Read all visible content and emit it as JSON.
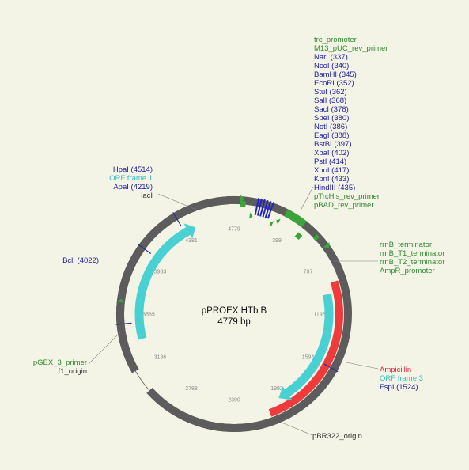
{
  "map": {
    "name": "pPROEX HTb B",
    "length": "4779 bp"
  },
  "ticks": [
    "399",
    "797",
    "1196",
    "1594",
    "1992",
    "2390",
    "2788",
    "3186",
    "3585",
    "3983",
    "4381",
    "4779"
  ],
  "label_groups": [
    {
      "id": "top-right",
      "labels": [
        {
          "text": "trc_promoter",
          "color": "#2e8b2e"
        },
        {
          "text": "M13_pUC_rev_primer",
          "color": "#2e8b2e"
        },
        {
          "text": "NarI (337)",
          "color": "#1a1aa6"
        },
        {
          "text": "NcoI (340)",
          "color": "#1a1aa6"
        },
        {
          "text": "BamHI (345)",
          "color": "#1a1aa6"
        },
        {
          "text": "EcoRI (352)",
          "color": "#1a1aa6"
        },
        {
          "text": "StuI (362)",
          "color": "#1a1aa6"
        },
        {
          "text": "SalI (368)",
          "color": "#1a1aa6"
        },
        {
          "text": "SacI (378)",
          "color": "#1a1aa6"
        },
        {
          "text": "SpeI (380)",
          "color": "#1a1aa6"
        },
        {
          "text": "NotI (386)",
          "color": "#1a1aa6"
        },
        {
          "text": "EagI (388)",
          "color": "#1a1aa6"
        },
        {
          "text": "BstBI (397)",
          "color": "#1a1aa6"
        },
        {
          "text": "XbaI (402)",
          "color": "#1a1aa6"
        },
        {
          "text": "PstI (414)",
          "color": "#1a1aa6"
        },
        {
          "text": "XhoI (417)",
          "color": "#1a1aa6"
        },
        {
          "text": "KpnI (433)",
          "color": "#1a1aa6"
        },
        {
          "text": "HindIII (435)",
          "color": "#1a1aa6"
        },
        {
          "text": "pTrcHis_rev_primer",
          "color": "#2e8b2e"
        },
        {
          "text": "pBAD_rev_primer",
          "color": "#2e8b2e"
        }
      ]
    },
    {
      "id": "right-terminators",
      "labels": [
        {
          "text": "rrnB_terminator",
          "color": "#2e8b2e"
        },
        {
          "text": "rrnB_T1_terminator",
          "color": "#2e8b2e"
        },
        {
          "text": "rrnB_T2_terminator",
          "color": "#2e8b2e"
        },
        {
          "text": "AmpR_promoter",
          "color": "#2e8b2e"
        }
      ]
    },
    {
      "id": "right-lower",
      "labels": [
        {
          "text": "Ampicillin",
          "color": "#e0203a"
        },
        {
          "text": "ORF frame 3",
          "color": "#2fbfc0"
        },
        {
          "text": "FspI (1524)",
          "color": "#1a1aa6"
        }
      ]
    },
    {
      "id": "bottom",
      "labels": [
        {
          "text": "pBR322_origin",
          "color": "#333333"
        }
      ]
    },
    {
      "id": "left-lower",
      "labels": [
        {
          "text": "pGEX_3_primer",
          "color": "#2e8b2e"
        },
        {
          "text": "f1_origin",
          "color": "#333333"
        }
      ]
    },
    {
      "id": "left-mid",
      "labels": [
        {
          "text": "BclI (4022)",
          "color": "#1a1aa6"
        }
      ]
    },
    {
      "id": "top-left",
      "labels": [
        {
          "text": "HpaI (4514)",
          "color": "#1a1aa6"
        },
        {
          "text": "ORF frame 1",
          "color": "#2fbfc0"
        },
        {
          "text": "ApaI (4219)",
          "color": "#1a1aa6"
        },
        {
          "text": "lacI",
          "color": "#333333"
        }
      ]
    }
  ]
}
